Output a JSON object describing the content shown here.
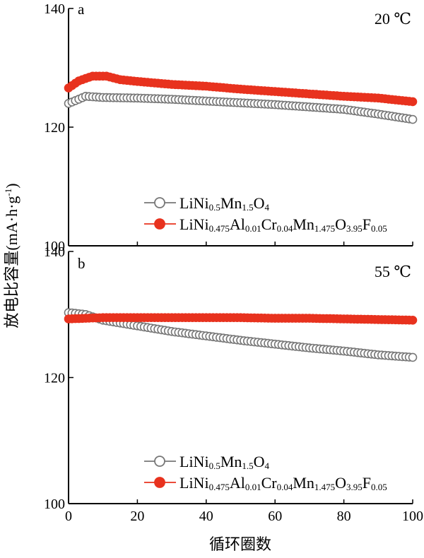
{
  "chart_data": {
    "type": "line",
    "figure_xlabel": "循环圈数",
    "figure_ylabel_main": "放电比容量",
    "figure_ylabel_unit": "(mA·h·g",
    "figure_ylabel_sup": "-1",
    "figure_ylabel_close": ")",
    "x_ticks": [
      "0",
      "20",
      "40",
      "60",
      "80",
      "100"
    ],
    "xlim": [
      0,
      100
    ],
    "panels": [
      {
        "letter": "a",
        "temperature": "20 ℃",
        "ylim": [
          100,
          140
        ],
        "y_ticks": [
          "100",
          "120",
          "140"
        ],
        "series": [
          {
            "name_parts": [
              [
                "LiNi",
                ""
              ],
              [
                "0.5",
                "sub"
              ],
              [
                "Mn",
                ""
              ],
              [
                "1.5",
                "sub"
              ],
              [
                "O",
                ""
              ],
              [
                "4",
                "sub"
              ]
            ],
            "color": "#777777",
            "marker_fill": "#ffffff",
            "points": [
              [
                0,
                124.0
              ],
              [
                5,
                125.2
              ],
              [
                10,
                125.0
              ],
              [
                20,
                124.9
              ],
              [
                30,
                124.7
              ],
              [
                40,
                124.4
              ],
              [
                50,
                124.1
              ],
              [
                60,
                123.8
              ],
              [
                70,
                123.4
              ],
              [
                80,
                123.0
              ],
              [
                90,
                122.2
              ],
              [
                100,
                121.3
              ]
            ]
          },
          {
            "name_parts": [
              [
                "LiNi",
                ""
              ],
              [
                "0.475",
                "sub"
              ],
              [
                "Al",
                ""
              ],
              [
                "0.01",
                "sub"
              ],
              [
                "Cr",
                ""
              ],
              [
                "0.04",
                "sub"
              ],
              [
                "Mn",
                ""
              ],
              [
                "1.475",
                "sub"
              ],
              [
                "O",
                ""
              ],
              [
                "3.95",
                "sub"
              ],
              [
                "F",
                ""
              ],
              [
                "0.05",
                "sub"
              ]
            ],
            "color": "#e8321e",
            "marker_fill": "#e8321e",
            "points": [
              [
                0,
                126.6
              ],
              [
                3,
                127.8
              ],
              [
                7,
                128.6
              ],
              [
                11,
                128.6
              ],
              [
                15,
                128.0
              ],
              [
                20,
                127.7
              ],
              [
                30,
                127.2
              ],
              [
                40,
                126.9
              ],
              [
                50,
                126.4
              ],
              [
                60,
                126.0
              ],
              [
                70,
                125.6
              ],
              [
                80,
                125.2
              ],
              [
                90,
                124.9
              ],
              [
                100,
                124.3
              ]
            ]
          }
        ]
      },
      {
        "letter": "b",
        "temperature": "55 ℃",
        "ylim": [
          100,
          140
        ],
        "y_ticks": [
          "100",
          "120",
          "140"
        ],
        "series": [
          {
            "name_parts": [
              [
                "LiNi",
                ""
              ],
              [
                "0.5",
                "sub"
              ],
              [
                "Mn",
                ""
              ],
              [
                "1.5",
                "sub"
              ],
              [
                "O",
                ""
              ],
              [
                "4",
                "sub"
              ]
            ],
            "color": "#777777",
            "marker_fill": "#ffffff",
            "points": [
              [
                0,
                130.3
              ],
              [
                5,
                130.0
              ],
              [
                10,
                129.1
              ],
              [
                20,
                128.2
              ],
              [
                30,
                127.3
              ],
              [
                40,
                126.6
              ],
              [
                50,
                125.9
              ],
              [
                60,
                125.3
              ],
              [
                70,
                124.7
              ],
              [
                80,
                124.2
              ],
              [
                90,
                123.6
              ],
              [
                100,
                123.2
              ]
            ]
          },
          {
            "name_parts": [
              [
                "LiNi",
                ""
              ],
              [
                "0.475",
                "sub"
              ],
              [
                "Al",
                ""
              ],
              [
                "0.01",
                "sub"
              ],
              [
                "Cr",
                ""
              ],
              [
                "0.04",
                "sub"
              ],
              [
                "Mn",
                ""
              ],
              [
                "1.475",
                "sub"
              ],
              [
                "O",
                ""
              ],
              [
                "3.95",
                "sub"
              ],
              [
                "F",
                ""
              ],
              [
                "0.05",
                "sub"
              ]
            ],
            "color": "#e8321e",
            "marker_fill": "#e8321e",
            "points": [
              [
                0,
                129.3
              ],
              [
                10,
                129.5
              ],
              [
                20,
                129.5
              ],
              [
                30,
                129.5
              ],
              [
                40,
                129.5
              ],
              [
                50,
                129.5
              ],
              [
                60,
                129.4
              ],
              [
                70,
                129.4
              ],
              [
                80,
                129.3
              ],
              [
                90,
                129.2
              ],
              [
                100,
                129.1
              ]
            ]
          }
        ]
      }
    ]
  }
}
